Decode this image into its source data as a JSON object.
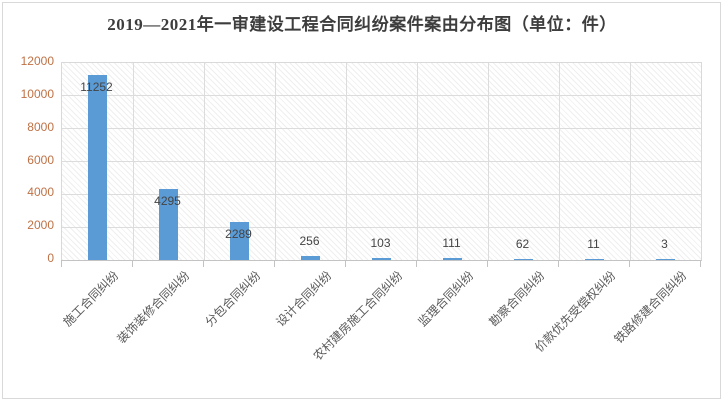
{
  "chart_data": {
    "type": "bar",
    "title": "2019—2021年一审建设工程合同纠纷案件案由分布图（单位：件）",
    "categories": [
      "施工合同纠纷",
      "装饰装修合同纠纷",
      "分包合同纠纷",
      "设计合同纠纷",
      "农村建房施工合同纠纷",
      "监理合同纠纷",
      "勘察合同纠纷",
      "价款优先受偿权纠纷",
      "铁路修建合同纠纷"
    ],
    "values": [
      11252,
      4295,
      2289,
      256,
      103,
      111,
      62,
      11,
      3
    ],
    "data_labels": [
      "11252",
      "4295",
      "2289",
      "256",
      "103",
      "111",
      "62",
      "11",
      "3"
    ],
    "xlabel": "",
    "ylabel": "",
    "ylim": [
      0,
      12000
    ],
    "yticks": [
      0,
      2000,
      4000,
      6000,
      8000,
      10000,
      12000
    ],
    "grid": true,
    "legend_position": "none",
    "bar_color": "#5b9bd5",
    "plot_hatch": "diagonal",
    "colors": {
      "bar": "#5b9bd5",
      "gridline": "#dcdcdc",
      "y_tick_label": "#bf7145",
      "x_tick_label": "#595959",
      "title": "#3d3d3d",
      "data_label": "#444444",
      "frame_border": "#d9d9d9"
    }
  }
}
